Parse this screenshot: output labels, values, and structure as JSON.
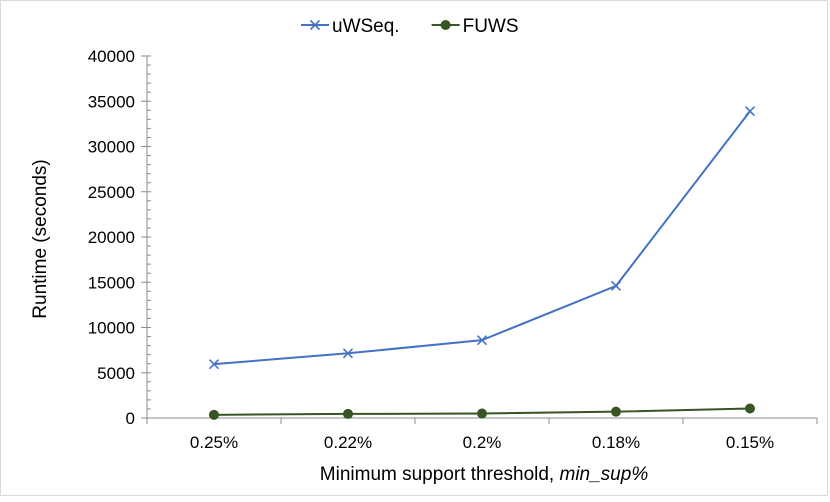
{
  "chart_data": {
    "type": "line",
    "categories": [
      "0.25%",
      "0.22%",
      "0.2%",
      "0.18%",
      "0.15%"
    ],
    "series": [
      {
        "name": "uWSeq.",
        "values": [
          5950,
          7150,
          8600,
          14600,
          33900
        ],
        "color": "#4472c4",
        "marker": "x-mark"
      },
      {
        "name": "FUWS",
        "values": [
          350,
          450,
          500,
          700,
          1050
        ],
        "color": "#375623",
        "marker": "circle"
      }
    ],
    "ylim": [
      0,
      40000
    ],
    "yticks": [
      0,
      5000,
      10000,
      15000,
      20000,
      25000,
      30000,
      35000,
      40000
    ],
    "ylabel": "Runtime (seconds)",
    "xlabel_prefix": "Minimum support threshold, ",
    "xlabel_italic": "min_sup%",
    "legend_position": "top",
    "grid": false
  }
}
